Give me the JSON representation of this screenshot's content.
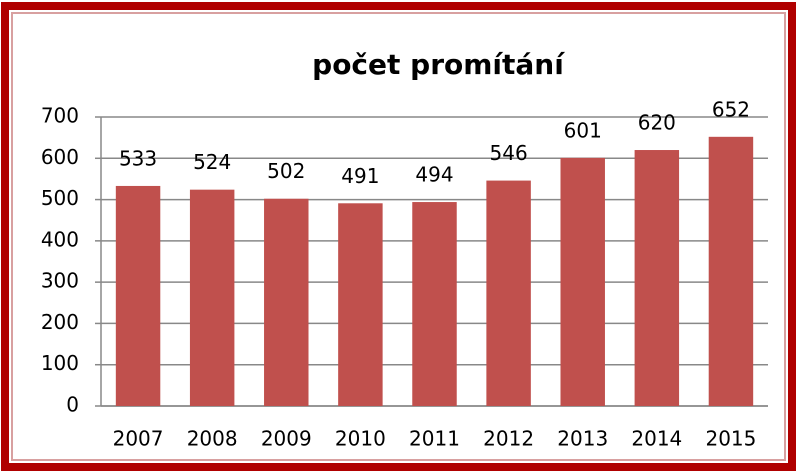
{
  "chart_data": {
    "type": "bar",
    "title": "počet promítání",
    "categories": [
      "2007",
      "2008",
      "2009",
      "2010",
      "2011",
      "2012",
      "2013",
      "2014",
      "2015"
    ],
    "values": [
      533,
      524,
      502,
      491,
      494,
      546,
      601,
      620,
      652
    ],
    "color": "#c0504d",
    "ylim": [
      0,
      700
    ],
    "yticks": [
      0,
      100,
      200,
      300,
      400,
      500,
      600,
      700
    ],
    "grid": true
  }
}
